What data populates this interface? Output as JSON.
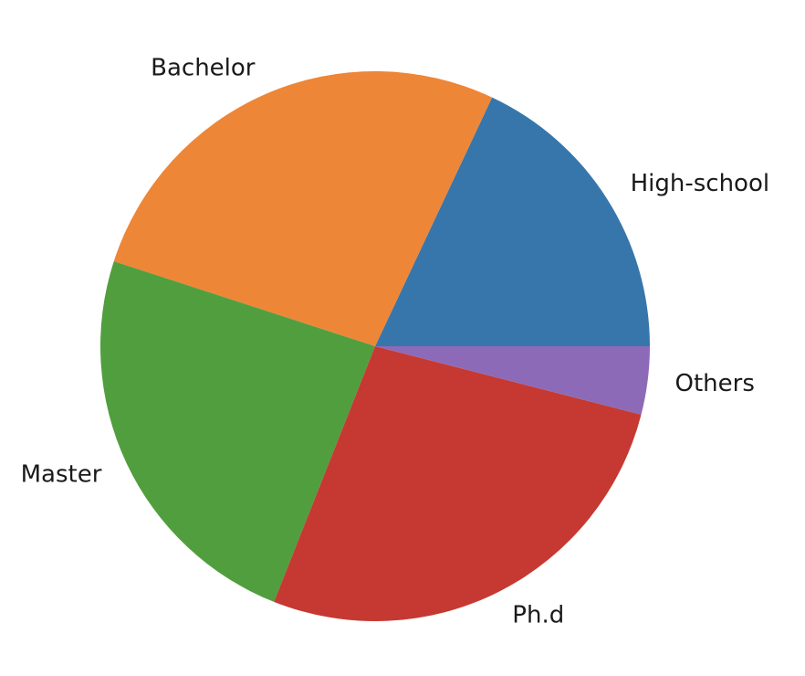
{
  "chart_data": {
    "type": "pie",
    "title": "",
    "slices": [
      {
        "label": "High-school",
        "value": 18,
        "color": "#3776ab"
      },
      {
        "label": "Bachelor",
        "value": 27,
        "color": "#ee8637"
      },
      {
        "label": "Master",
        "value": 24,
        "color": "#519e3e"
      },
      {
        "label": "Ph.d",
        "value": 27,
        "color": "#c53932"
      },
      {
        "label": "Others",
        "value": 4,
        "color": "#8d6ab8"
      }
    ],
    "start_angle_deg": 0,
    "direction": "counterclockwise",
    "legend": "none"
  }
}
